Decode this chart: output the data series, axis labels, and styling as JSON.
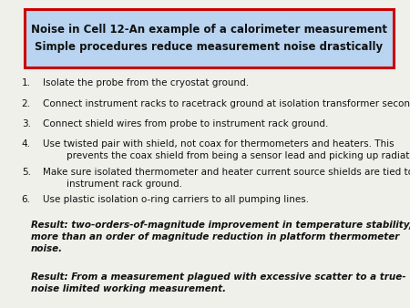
{
  "title_line1": "Noise in Cell 12-An example of a calorimeter measurement",
  "title_line2": "Simple procedures reduce measurement noise drastically",
  "title_box_bg": "#b8d4f0",
  "title_box_edge": "#cc0000",
  "bg_color": "#f0f0eb",
  "list_items": [
    "Isolate the probe from the cryostat ground.",
    "Connect instrument racks to racetrack ground at isolation transformer secondary.",
    "Connect shield wires from probe to instrument rack ground.",
    "Use twisted pair with shield, not coax for thermometers and heaters. This\n        prevents the coax shield from being a sensor lead and picking up radiated noise.",
    "Make sure isolated thermometer and heater current source shields are tied to\n        instrument rack ground.",
    "Use plastic isolation o-ring carriers to all pumping lines."
  ],
  "result1": "Result: two-orders-of-magnitude improvement in temperature stability,\nmore than an order of magnitude reduction in platform thermometer\nnoise.",
  "result2": "Result: From a measurement plagued with excessive scatter to a true-\nnoise limited working measurement.",
  "font_size_title": 8.5,
  "font_size_body": 7.5,
  "font_size_result": 7.5,
  "text_color": "#111111"
}
